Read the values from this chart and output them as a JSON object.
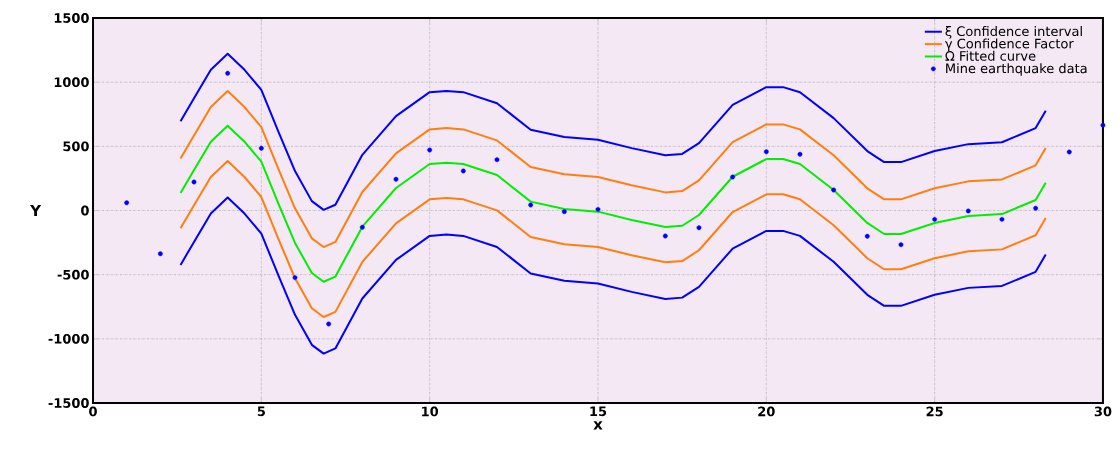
{
  "chart_data": {
    "type": "line",
    "xlabel": "x",
    "ylabel": "Y",
    "xlim": [
      0,
      30
    ],
    "ylim": [
      -1500,
      1500
    ],
    "xticks": [
      0,
      5,
      10,
      15,
      20,
      25,
      30
    ],
    "yticks": [
      -1500,
      -1000,
      -500,
      0,
      500,
      1000,
      1500
    ],
    "grid": true,
    "legend": "top right",
    "line_style": "solid",
    "series": [
      {
        "name": "ξ Confidence interval",
        "color": "#0000ff",
        "marker": "none",
        "x": [
          2.6,
          3,
          3.5,
          4,
          4.5,
          5,
          5.5,
          6,
          6.5,
          6.85,
          7.2,
          8,
          9,
          10,
          10.5,
          11,
          12,
          13,
          14,
          15,
          16,
          17,
          17.5,
          18,
          19,
          20,
          20.5,
          21,
          22,
          23,
          23.5,
          24,
          25,
          26,
          27,
          28,
          28.3
        ],
        "values": [
          696,
          875,
          1096,
          1221,
          1096,
          940,
          618,
          307,
          73,
          5,
          45,
          434,
          735,
          922,
          932,
          922,
          836,
          629,
          572,
          551,
          486,
          431,
          441,
          525,
          823,
          961,
          961,
          922,
          720,
          463,
          377,
          377,
          463,
          517,
          532,
          642,
          777
        ]
      },
      {
        "name": "γ Confidence Factor",
        "color": "#ff7f0e",
        "marker": "none",
        "x": [
          2.6,
          3,
          3.5,
          4,
          4.5,
          5,
          5.5,
          6,
          6.5,
          6.85,
          7.2,
          8,
          9,
          10,
          10.5,
          11,
          12,
          13,
          14,
          15,
          16,
          17,
          17.5,
          18,
          19,
          20,
          20.5,
          21,
          22,
          23,
          23.5,
          24,
          25,
          26,
          27,
          28,
          28.3
        ],
        "values": [
          406,
          585,
          806,
          931,
          806,
          650,
          328,
          17,
          -217,
          -285,
          -245,
          144,
          445,
          632,
          642,
          632,
          546,
          339,
          282,
          261,
          196,
          141,
          151,
          235,
          533,
          671,
          671,
          632,
          430,
          173,
          87,
          87,
          173,
          227,
          242,
          352,
          487
        ]
      },
      {
        "name": "Ω Fitted curve",
        "color": "#00ee00",
        "marker": "none",
        "x": [
          2.6,
          3,
          3.5,
          4,
          4.5,
          5,
          5.5,
          6,
          6.5,
          6.85,
          7.2,
          8,
          9,
          10,
          10.5,
          11,
          12,
          13,
          14,
          15,
          16,
          17,
          17.5,
          18,
          19,
          20,
          20.5,
          21,
          22,
          23,
          23.5,
          24,
          25,
          26,
          27,
          28,
          28.3
        ],
        "values": [
          136,
          315,
          536,
          661,
          536,
          380,
          58,
          -253,
          -487,
          -555,
          -515,
          -126,
          175,
          362,
          372,
          362,
          276,
          69,
          12,
          -9,
          -74,
          -129,
          -119,
          -35,
          263,
          401,
          401,
          362,
          160,
          -97,
          -183,
          -183,
          -97,
          -43,
          -28,
          82,
          217
        ]
      },
      {
        "name": "Mine earthquake data",
        "type": "scatter",
        "color": "#0000ff",
        "marker": "circle",
        "x": [
          1,
          2,
          3,
          4,
          5,
          6,
          7,
          8,
          9,
          10,
          11,
          12,
          13,
          14,
          15,
          17,
          18,
          19,
          20,
          21,
          22,
          23,
          24,
          25,
          26,
          27,
          28,
          29,
          30
        ],
        "values": [
          60,
          -337,
          222,
          1069,
          485,
          -523,
          -884,
          -131,
          243,
          471,
          308,
          396,
          43,
          -9,
          9,
          -199,
          -134,
          261,
          458,
          438,
          160,
          -201,
          -266,
          -69,
          -4,
          -69,
          17,
          456,
          664
        ]
      },
      {
        "color": "#ff7f0e",
        "marker": "none",
        "x": [
          2.6,
          3,
          3.5,
          4,
          4.5,
          5,
          5.5,
          6,
          6.5,
          6.85,
          7.2,
          8,
          9,
          10,
          10.5,
          11,
          12,
          13,
          14,
          15,
          16,
          17,
          17.5,
          18,
          19,
          20,
          20.5,
          21,
          22,
          23,
          23.5,
          24,
          25,
          26,
          27,
          28,
          28.3
        ],
        "values": [
          -139,
          40,
          261,
          386,
          261,
          105,
          -217,
          -528,
          -762,
          -830,
          -790,
          -401,
          -100,
          87,
          97,
          87,
          1,
          -206,
          -263,
          -284,
          -349,
          -404,
          -394,
          -310,
          -12,
          126,
          126,
          87,
          -115,
          -372,
          -458,
          -458,
          -372,
          -318,
          -303,
          -193,
          -58
        ]
      },
      {
        "color": "#0000ff",
        "marker": "none",
        "x": [
          2.6,
          3,
          3.5,
          4,
          4.5,
          5,
          5.5,
          6,
          6.5,
          6.85,
          7.2,
          8,
          9,
          10,
          10.5,
          11,
          12,
          13,
          14,
          15,
          16,
          17,
          17.5,
          18,
          19,
          20,
          20.5,
          21,
          22,
          23,
          23.5,
          24,
          25,
          26,
          27,
          28,
          28.3
        ],
        "values": [
          -424,
          -245,
          -24,
          101,
          -24,
          -180,
          -502,
          -813,
          -1047,
          -1115,
          -1075,
          -686,
          -385,
          -198,
          -188,
          -198,
          -284,
          -491,
          -548,
          -569,
          -634,
          -689,
          -679,
          -595,
          -297,
          -159,
          -159,
          -198,
          -400,
          -657,
          -743,
          -743,
          -657,
          -603,
          -588,
          -478,
          -343
        ]
      }
    ]
  }
}
